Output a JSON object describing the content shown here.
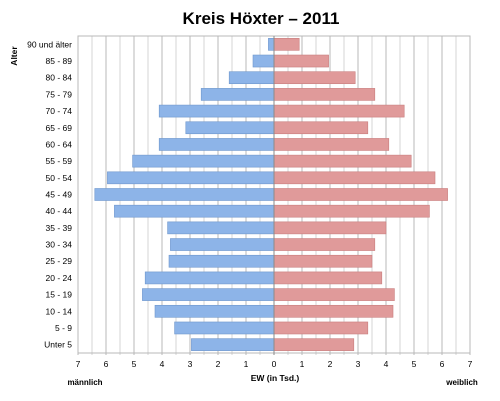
{
  "chart_data": {
    "type": "bar",
    "title": "Kreis Höxter – 2011",
    "ylabel": "Alter",
    "xlabel": "EW (in Tsd.)",
    "left_label": "männlich",
    "right_label": "weiblich",
    "x_ticks": [
      "7",
      "6",
      "5",
      "4",
      "3",
      "2",
      "1",
      "0",
      "1",
      "2",
      "3",
      "4",
      "5",
      "6",
      "7"
    ],
    "xlim": [
      -7,
      7
    ],
    "grid": true,
    "colors": {
      "male": "#8db4e8",
      "female": "#e09a9a"
    },
    "categories": [
      "90 und älter",
      "85 - 89",
      "80 - 84",
      "75 - 79",
      "70 - 74",
      "65 - 69",
      "60 - 64",
      "55 - 59",
      "50 - 54",
      "45 - 49",
      "40 - 44",
      "35 - 39",
      "30 - 34",
      "25 - 29",
      "20 - 24",
      "15 - 19",
      "10 - 14",
      "5 - 9",
      "Unter 5"
    ],
    "series": [
      {
        "name": "männlich",
        "values": [
          0.2,
          0.75,
          1.6,
          2.6,
          4.1,
          3.15,
          4.1,
          5.05,
          5.95,
          6.4,
          5.7,
          3.8,
          3.7,
          3.75,
          4.6,
          4.7,
          4.25,
          3.55,
          2.95
        ]
      },
      {
        "name": "weiblich",
        "values": [
          0.9,
          1.95,
          2.9,
          3.6,
          4.65,
          3.35,
          4.1,
          4.9,
          5.75,
          6.2,
          5.55,
          4.0,
          3.6,
          3.5,
          3.85,
          4.3,
          4.25,
          3.35,
          2.85
        ]
      }
    ]
  }
}
